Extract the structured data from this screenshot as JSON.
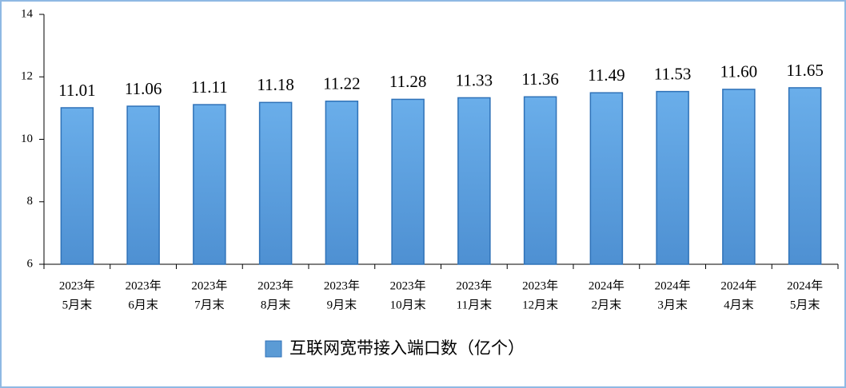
{
  "chart_data": {
    "type": "bar",
    "categories": [
      [
        "2023年",
        "5月末"
      ],
      [
        "2023年",
        "6月末"
      ],
      [
        "2023年",
        "7月末"
      ],
      [
        "2023年",
        "8月末"
      ],
      [
        "2023年",
        "9月末"
      ],
      [
        "2023年",
        "10月末"
      ],
      [
        "2023年",
        "11月末"
      ],
      [
        "2023年",
        "12月末"
      ],
      [
        "2024年",
        "2月末"
      ],
      [
        "2024年",
        "3月末"
      ],
      [
        "2024年",
        "4月末"
      ],
      [
        "2024年",
        "5月末"
      ]
    ],
    "series": [
      {
        "name": "互联网宽带接入端口数（亿个）",
        "color": "#5b9bd5",
        "values": [
          11.01,
          11.06,
          11.11,
          11.18,
          11.22,
          11.28,
          11.33,
          11.36,
          11.49,
          11.53,
          11.6,
          11.65
        ],
        "value_labels": [
          "11.01",
          "11.06",
          "11.11",
          "11.18",
          "11.22",
          "11.28",
          "11.33",
          "11.36",
          "11.49",
          "11.53",
          "11.60",
          "11.65"
        ]
      }
    ],
    "ylim": [
      6,
      14
    ],
    "yticks": [
      6,
      8,
      10,
      12,
      14
    ],
    "grid": false,
    "legend": "bottom"
  }
}
